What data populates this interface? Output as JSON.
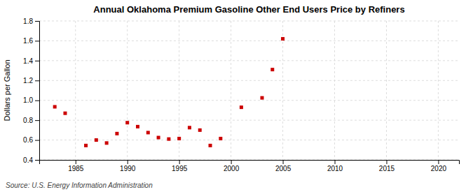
{
  "chart_data": {
    "type": "scatter",
    "title": "Annual Oklahoma Premium Gasoline Other End Users Price by Refiners",
    "y_label": "Dollars per Gallon",
    "annotation": "Source: U.S. Energy Information Administration",
    "x": [
      1983,
      1984,
      1986,
      1987,
      1988,
      1989,
      1990,
      1991,
      1992,
      1993,
      1994,
      1995,
      1996,
      1997,
      1998,
      1999,
      2001,
      2003,
      2004,
      2005
    ],
    "values": [
      0.935,
      0.87,
      0.545,
      0.6,
      0.57,
      0.665,
      0.775,
      0.735,
      0.675,
      0.625,
      0.61,
      0.615,
      0.725,
      0.7,
      0.545,
      0.615,
      0.93,
      1.025,
      1.31,
      1.62
    ],
    "color": "#cc0000",
    "marker": "square",
    "xlim": [
      1981.5,
      2022
    ],
    "ylim": [
      0.4,
      1.8
    ],
    "xticks": [
      1985,
      1990,
      1995,
      2000,
      2005,
      2010,
      2015,
      2020
    ],
    "yticks": [
      0.4,
      0.6,
      0.8,
      {
        "value": 1.0,
        "label": "1.0"
      },
      1.2,
      1.4,
      1.6,
      1.8
    ],
    "grid": true
  }
}
